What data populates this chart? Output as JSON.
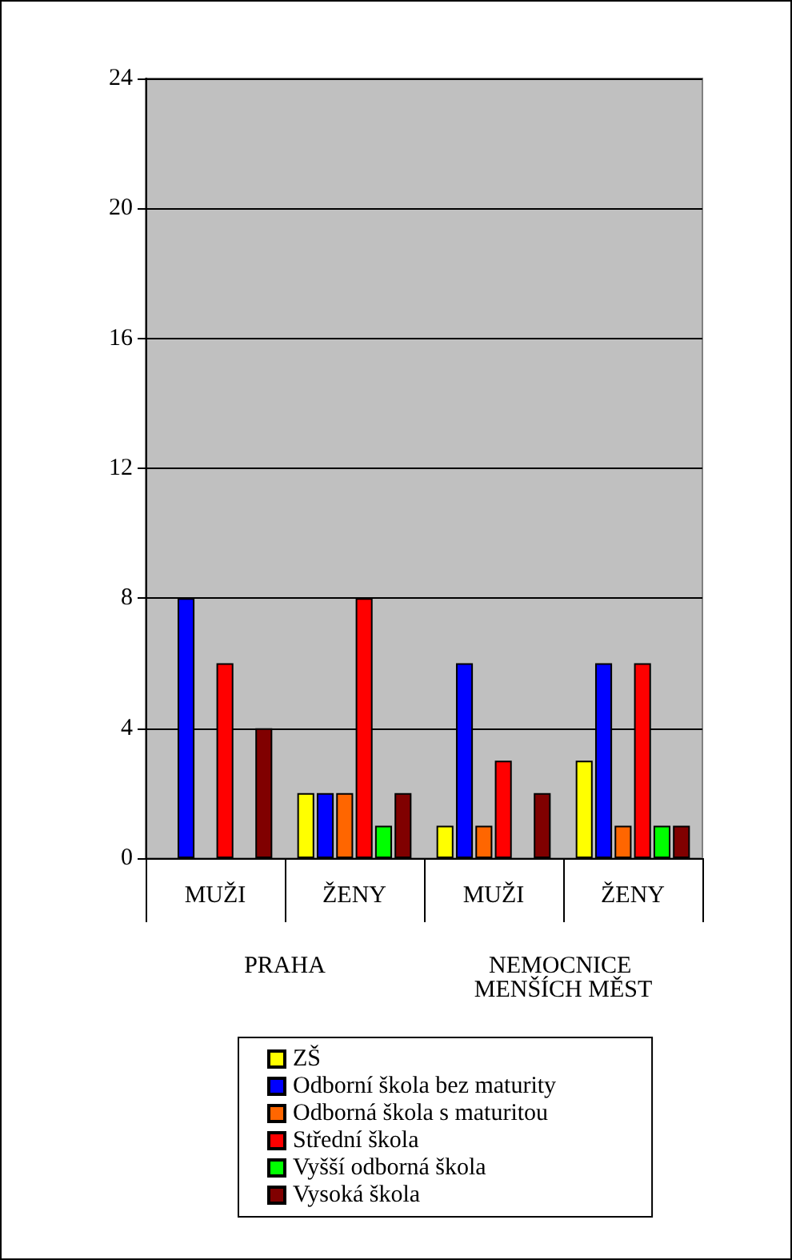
{
  "chart_data": {
    "type": "bar",
    "categories": [
      "MUŽI",
      "ŽENY",
      "MUŽI",
      "ŽENY"
    ],
    "annotations": [
      "PRAHA",
      "NEMOCNICE MENŠÍCH MĚST"
    ],
    "series": [
      {
        "name": "ZŠ",
        "color": "#ffff00",
        "values": [
          0,
          2,
          1,
          3
        ]
      },
      {
        "name": "Odborní škola bez maturity",
        "color": "#0000ff",
        "values": [
          8,
          2,
          6,
          6
        ]
      },
      {
        "name": "Odborná škola s maturitou",
        "color": "#ff6600",
        "values": [
          0,
          2,
          1,
          1
        ]
      },
      {
        "name": "Střední škola",
        "color": "#ff0000",
        "values": [
          6,
          8,
          3,
          6
        ]
      },
      {
        "name": "Vyšší odborná škola",
        "color": "#00ff00",
        "values": [
          0,
          1,
          0,
          1
        ]
      },
      {
        "name": "Vysoká škola",
        "color": "#800000",
        "values": [
          4,
          2,
          2,
          1
        ]
      }
    ],
    "ylim": [
      0,
      24
    ],
    "yticks": [
      0,
      4,
      8,
      12,
      16,
      20,
      24
    ],
    "grid": "y",
    "legend": "bottom"
  }
}
